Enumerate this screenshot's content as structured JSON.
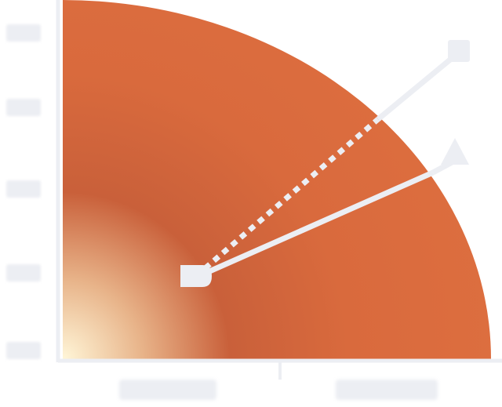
{
  "colors": {
    "arc_fill": "#d96a3d",
    "arc_dark": "#c9603a",
    "origin_glow": "#fff6d8",
    "axis": "#eceef3",
    "line": "#eceef3"
  },
  "icons": {
    "origin_marker": "rounded-square-icon",
    "endpoint_marker": "square-icon"
  },
  "y_tick_labels": [
    "",
    "",
    "",
    "",
    ""
  ],
  "x_axis_words": [
    "",
    ""
  ]
}
